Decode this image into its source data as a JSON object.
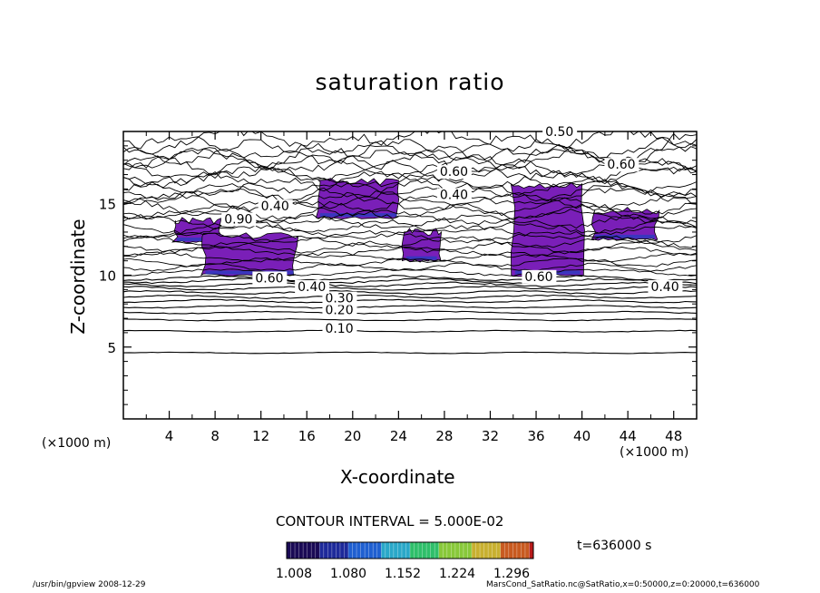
{
  "chart_data": {
    "type": "contour",
    "title": "saturation ratio",
    "xlabel": "X-coordinate",
    "ylabel": "Z-coordinate",
    "x_unit_left": "(×1000 m)",
    "x_unit_right": "(×1000 m)",
    "xlim": [
      0,
      50
    ],
    "ylim": [
      0,
      20
    ],
    "x_ticks": [
      4,
      8,
      12,
      16,
      20,
      24,
      28,
      32,
      36,
      40,
      44,
      48
    ],
    "y_ticks": [
      5,
      10,
      15
    ],
    "contour_interval_text": "CONTOUR INTERVAL = 5.000E-02",
    "contour_labels": [
      {
        "text": "0.10",
        "x": 17.6,
        "y": 6.0
      },
      {
        "text": "0.20",
        "x": 17.6,
        "y": 7.3
      },
      {
        "text": "0.30",
        "x": 17.6,
        "y": 8.1
      },
      {
        "text": "0.40",
        "x": 15.2,
        "y": 8.9
      },
      {
        "text": "0.40",
        "x": 46.0,
        "y": 8.9
      },
      {
        "text": "0.60",
        "x": 11.5,
        "y": 9.5
      },
      {
        "text": "0.60",
        "x": 35.0,
        "y": 9.6
      },
      {
        "text": "0.50",
        "x": 36.8,
        "y": 19.7
      },
      {
        "text": "0.60",
        "x": 42.2,
        "y": 17.4
      },
      {
        "text": "0.60",
        "x": 27.6,
        "y": 16.9
      },
      {
        "text": "0.40",
        "x": 27.6,
        "y": 15.3
      },
      {
        "text": "0.40",
        "x": 12.0,
        "y": 14.5
      },
      {
        "text": "0.90",
        "x": 8.8,
        "y": 13.6
      }
    ],
    "shaded_regions": [
      {
        "x": [
          4.5,
          8.5
        ],
        "z": [
          12.3,
          13.8
        ],
        "color": "#7a1fb8"
      },
      {
        "x": [
          7.0,
          15.0
        ],
        "z": [
          10.0,
          12.7
        ],
        "color": "#7a1fb8"
      },
      {
        "x": [
          17.0,
          24.0
        ],
        "z": [
          14.0,
          16.5
        ],
        "color": "#7a1fb8"
      },
      {
        "x": [
          24.5,
          27.5
        ],
        "z": [
          11.0,
          13.0
        ],
        "color": "#7a1fb8"
      },
      {
        "x": [
          34.0,
          40.0
        ],
        "z": [
          10.0,
          16.3
        ],
        "color": "#7a1fb8"
      },
      {
        "x": [
          41.0,
          46.5
        ],
        "z": [
          12.5,
          14.5
        ],
        "color": "#7a1fb8"
      }
    ],
    "colorbar": {
      "ticks": [
        "1.008",
        "1.080",
        "1.152",
        "1.224",
        "1.296"
      ],
      "colors": [
        "#1a0a55",
        "#1e2a9a",
        "#1f5fd0",
        "#2aa8c8",
        "#2fbf6a",
        "#88c83a",
        "#c8b030",
        "#c85a20",
        "#b81a1a"
      ]
    },
    "time_label": "t=636000  s"
  },
  "footer": {
    "left": "/usr/bin/gpview  2008-12-29",
    "right": "MarsCond_SatRatio.nc@SatRatio,x=0:50000,z=0:20000,t=636000"
  }
}
